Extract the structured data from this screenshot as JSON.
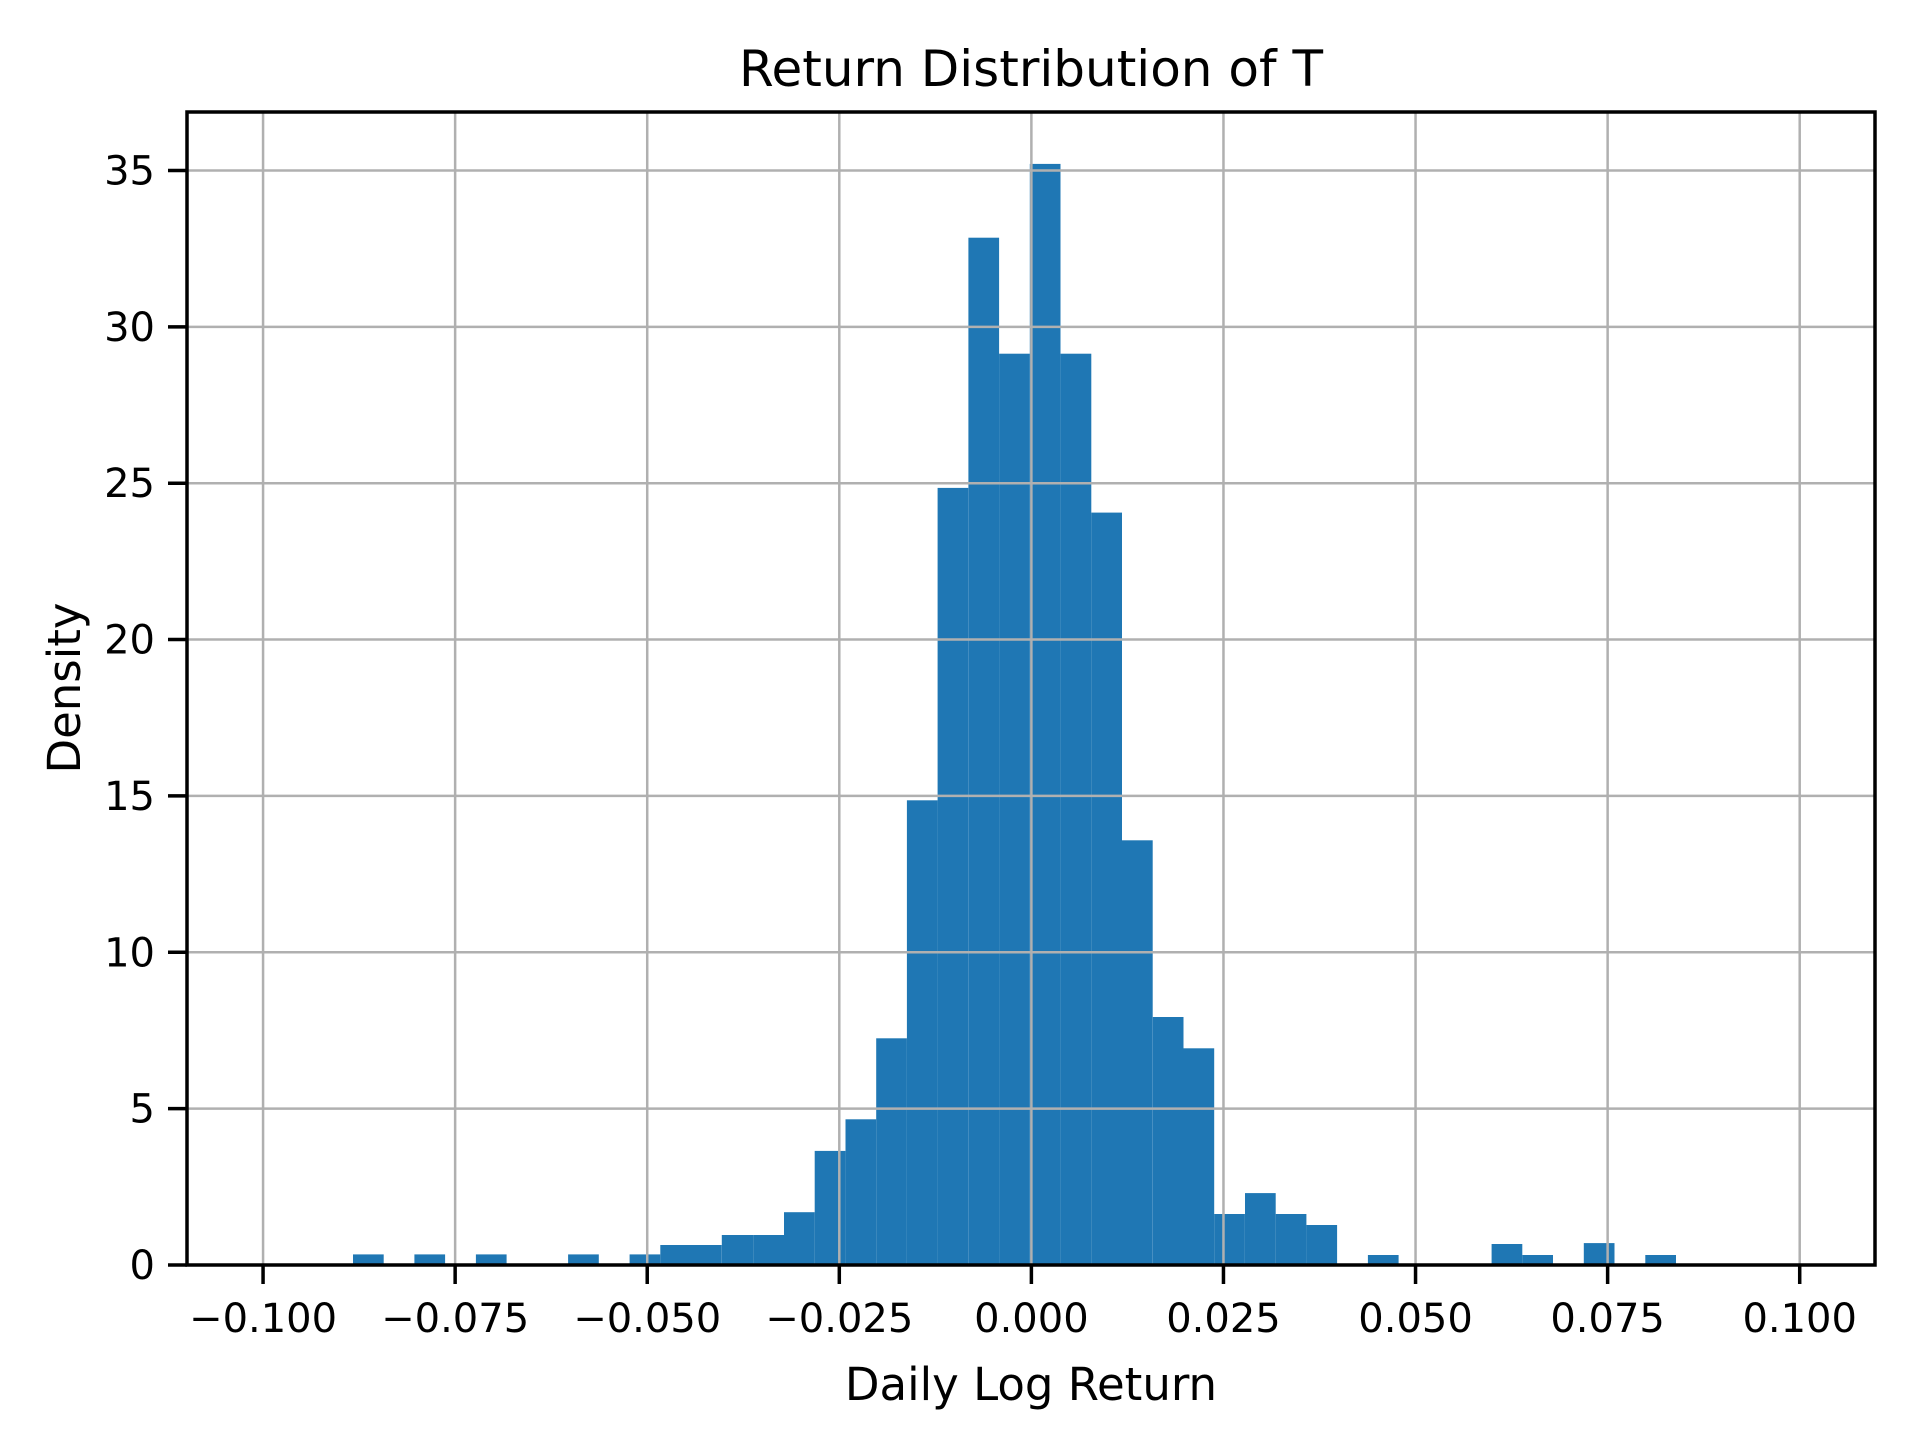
{
  "figure": {
    "background": "#ffffff"
  },
  "chart_data": {
    "type": "bar",
    "subtype": "histogram",
    "title": "Return Distribution of T",
    "xlabel": "Daily Log Return",
    "ylabel": "Density",
    "grid": true,
    "grid_color": "#b0b0b0",
    "bar_color": "#1f77b4",
    "spine_color": "#000000",
    "xlim": [
      -0.1099,
      0.1098
    ],
    "ylim": [
      0,
      36.87
    ],
    "xticks": [
      {
        "v": -0.1,
        "label": "−0.100"
      },
      {
        "v": -0.075,
        "label": "−0.075"
      },
      {
        "v": -0.05,
        "label": "−0.050"
      },
      {
        "v": -0.025,
        "label": "−0.025"
      },
      {
        "v": 0.0,
        "label": "0.000"
      },
      {
        "v": 0.025,
        "label": "0.025"
      },
      {
        "v": 0.05,
        "label": "0.050"
      },
      {
        "v": 0.075,
        "label": "0.075"
      },
      {
        "v": 0.1,
        "label": "0.100"
      }
    ],
    "yticks": [
      {
        "v": 0,
        "label": "0"
      },
      {
        "v": 5,
        "label": "5"
      },
      {
        "v": 10,
        "label": "10"
      },
      {
        "v": 15,
        "label": "15"
      },
      {
        "v": 20,
        "label": "20"
      },
      {
        "v": 25,
        "label": "25"
      },
      {
        "v": 30,
        "label": "30"
      },
      {
        "v": 35,
        "label": "35"
      }
    ],
    "bin_edges": [
      -0.0883,
      -0.0843,
      -0.0803,
      -0.0763,
      -0.0723,
      -0.0683,
      -0.0643,
      -0.0603,
      -0.0563,
      -0.0523,
      -0.0483,
      -0.0443,
      -0.0403,
      -0.0362,
      -0.0322,
      -0.0282,
      -0.0242,
      -0.0202,
      -0.0162,
      -0.0122,
      -0.0082,
      -0.0042,
      -0.0002,
      0.0038,
      0.0078,
      0.0118,
      0.0158,
      0.0198,
      0.0238,
      0.0278,
      0.0318,
      0.0358,
      0.0398,
      0.0438,
      0.0478,
      0.0518,
      0.0558,
      0.0599,
      0.0639,
      0.0679,
      0.0719,
      0.0759,
      0.0799,
      0.0839
    ],
    "densities": [
      0.34,
      0,
      0.34,
      0,
      0.34,
      0,
      0,
      0.34,
      0,
      0.34,
      0.64,
      0.64,
      0.96,
      0.96,
      1.69,
      3.65,
      4.66,
      7.25,
      14.86,
      24.85,
      32.85,
      29.14,
      35.21,
      29.14,
      24.06,
      13.58,
      7.93,
      6.93,
      1.63,
      2.3,
      1.63,
      1.28,
      0,
      0.32,
      0,
      0,
      0,
      0.67,
      0.32,
      0,
      0.7,
      0,
      0.32
    ]
  }
}
